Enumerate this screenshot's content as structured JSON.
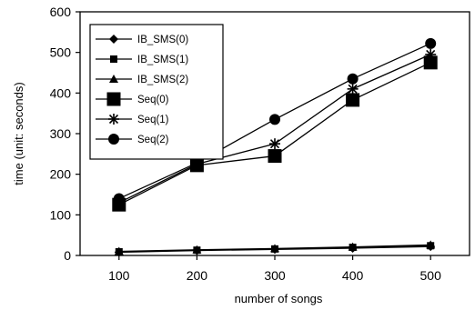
{
  "chart_data": {
    "type": "line",
    "xlabel": "number of songs",
    "ylabel": "time (unit: seconds)",
    "x": [
      100,
      200,
      300,
      400,
      500
    ],
    "xlim": [
      50,
      550
    ],
    "ylim": [
      0,
      600
    ],
    "yticks": [
      0,
      100,
      200,
      300,
      400,
      500,
      600
    ],
    "grid": false,
    "legend_position": "top-left",
    "series": [
      {
        "name": "IB_SMS(0)",
        "marker": "diamond",
        "values": [
          8,
          12,
          15,
          18,
          22
        ]
      },
      {
        "name": "IB_SMS(1)",
        "marker": "small-square",
        "values": [
          9,
          13,
          16,
          20,
          24
        ]
      },
      {
        "name": "IB_SMS(2)",
        "marker": "triangle",
        "values": [
          10,
          14,
          17,
          21,
          26
        ]
      },
      {
        "name": "Seq(0)",
        "marker": "large-square",
        "values": [
          125,
          222,
          245,
          383,
          475
        ]
      },
      {
        "name": "Seq(1)",
        "marker": "star",
        "values": [
          130,
          225,
          275,
          410,
          495
        ]
      },
      {
        "name": "Seq(2)",
        "marker": "circle",
        "values": [
          140,
          228,
          335,
          435,
          522
        ]
      }
    ]
  }
}
